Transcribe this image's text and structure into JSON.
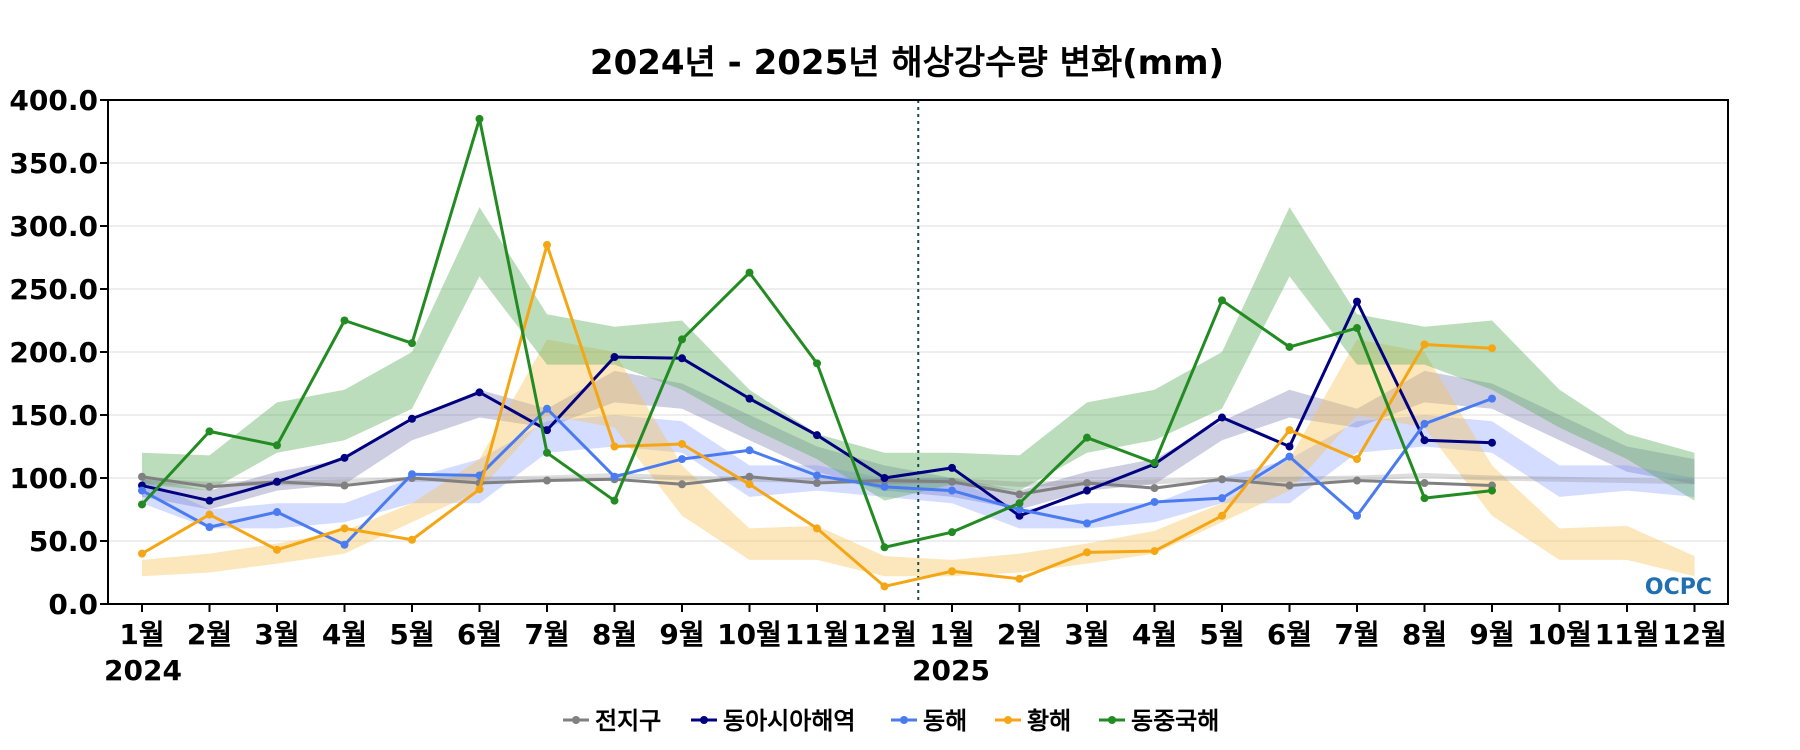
{
  "chart_data": {
    "type": "line",
    "title": "2024년 - 2025년 해상강수량 변화(mm)",
    "xlabel": "",
    "ylabel": "",
    "ylim": [
      0,
      400
    ],
    "yticks": [
      "0.0",
      "50.0",
      "100.0",
      "150.0",
      "200.0",
      "250.0",
      "300.0",
      "350.0",
      "400.0"
    ],
    "categories": [
      "1월",
      "2월",
      "3월",
      "4월",
      "5월",
      "6월",
      "7월",
      "8월",
      "9월",
      "10월",
      "11월",
      "12월",
      "1월",
      "2월",
      "3월",
      "4월",
      "5월",
      "6월",
      "7월",
      "8월",
      "9월",
      "10월",
      "11월",
      "12월"
    ],
    "year_labels": [
      "2024",
      "2025"
    ],
    "grid": true,
    "legend_position": "bottom",
    "series": [
      {
        "name": "전지구",
        "color": "#808080",
        "values": [
          101,
          93,
          97,
          94,
          100,
          96,
          98,
          99,
          95,
          101,
          96,
          98,
          97,
          87,
          96,
          92,
          99,
          94,
          98,
          96,
          94,
          null,
          null,
          null
        ]
      },
      {
        "name": "동아시아해역",
        "color": "#000080",
        "values": [
          94,
          82,
          97,
          116,
          147,
          168,
          138,
          196,
          195,
          163,
          134,
          100,
          108,
          70,
          90,
          111,
          148,
          125,
          240,
          130,
          128,
          null,
          null,
          null
        ]
      },
      {
        "name": "동해",
        "color": "#4a7bf0",
        "values": [
          90,
          61,
          73,
          47,
          103,
          102,
          155,
          101,
          115,
          122,
          102,
          93,
          90,
          75,
          64,
          81,
          84,
          117,
          70,
          143,
          163,
          null,
          null,
          null
        ]
      },
      {
        "name": "황해",
        "color": "#f5a614",
        "values": [
          40,
          71,
          43,
          60,
          51,
          91,
          285,
          125,
          127,
          95,
          60,
          14,
          26,
          20,
          41,
          42,
          70,
          138,
          115,
          206,
          203,
          null,
          null,
          null
        ]
      },
      {
        "name": "동중국해",
        "color": "#228b22",
        "values": [
          79,
          137,
          126,
          225,
          207,
          385,
          120,
          82,
          210,
          263,
          191,
          45,
          57,
          80,
          132,
          112,
          241,
          204,
          219,
          84,
          90,
          null,
          null,
          null
        ]
      }
    ],
    "bands": [
      {
        "name": "동아시아해역",
        "color": "#3c3c8c",
        "opacity": 0.25,
        "low": [
          85,
          75,
          90,
          95,
          130,
          148,
          140,
          160,
          155,
          130,
          105,
          90,
          85,
          75,
          90,
          95,
          130,
          148,
          140,
          160,
          155,
          130,
          105,
          95
        ],
        "high": [
          100,
          90,
          105,
          115,
          145,
          170,
          155,
          185,
          175,
          150,
          125,
          110,
          100,
          90,
          105,
          115,
          145,
          170,
          155,
          185,
          175,
          150,
          125,
          115
        ]
      },
      {
        "name": "동해",
        "color": "#6f8cff",
        "opacity": 0.3,
        "low": [
          80,
          60,
          60,
          65,
          80,
          80,
          120,
          125,
          120,
          85,
          90,
          85,
          80,
          60,
          60,
          65,
          80,
          80,
          120,
          125,
          120,
          85,
          90,
          85
        ],
        "high": [
          100,
          75,
          80,
          80,
          100,
          115,
          145,
          150,
          145,
          110,
          110,
          100,
          100,
          75,
          80,
          80,
          100,
          115,
          145,
          150,
          145,
          110,
          110,
          100
        ]
      },
      {
        "name": "황해",
        "color": "#f7c257",
        "opacity": 0.4,
        "low": [
          22,
          25,
          32,
          40,
          65,
          90,
          150,
          140,
          70,
          35,
          35,
          22,
          22,
          25,
          32,
          40,
          65,
          90,
          150,
          140,
          70,
          35,
          35,
          22
        ],
        "high": [
          35,
          40,
          48,
          58,
          80,
          115,
          210,
          200,
          110,
          60,
          62,
          38,
          35,
          40,
          48,
          58,
          80,
          115,
          210,
          200,
          110,
          60,
          62,
          38
        ]
      },
      {
        "name": "동중국해",
        "color": "#60ad60",
        "opacity": 0.42,
        "low": [
          95,
          90,
          120,
          130,
          155,
          260,
          190,
          190,
          170,
          140,
          115,
          82,
          95,
          90,
          120,
          130,
          155,
          260,
          190,
          190,
          170,
          140,
          115,
          82
        ],
        "high": [
          120,
          118,
          160,
          170,
          200,
          315,
          230,
          220,
          225,
          170,
          135,
          120,
          120,
          118,
          160,
          170,
          200,
          315,
          230,
          220,
          225,
          170,
          135,
          120
        ]
      },
      {
        "name": "전지구",
        "color": "#777777",
        "opacity": 0.25,
        "low": [
          96,
          93,
          94,
          95,
          97,
          97,
          98,
          100,
          98,
          97,
          96,
          95,
          96,
          93,
          94,
          95,
          97,
          97,
          98,
          100,
          98,
          97,
          96,
          95
        ],
        "high": [
          100,
          97,
          98,
          99,
          101,
          101,
          102,
          104,
          102,
          101,
          100,
          99,
          100,
          97,
          98,
          99,
          101,
          101,
          102,
          104,
          102,
          101,
          100,
          99
        ]
      }
    ],
    "annotations": [
      "year-divider"
    ]
  },
  "logo": {
    "text": "OCPC",
    "color": "#1f6fb2"
  }
}
